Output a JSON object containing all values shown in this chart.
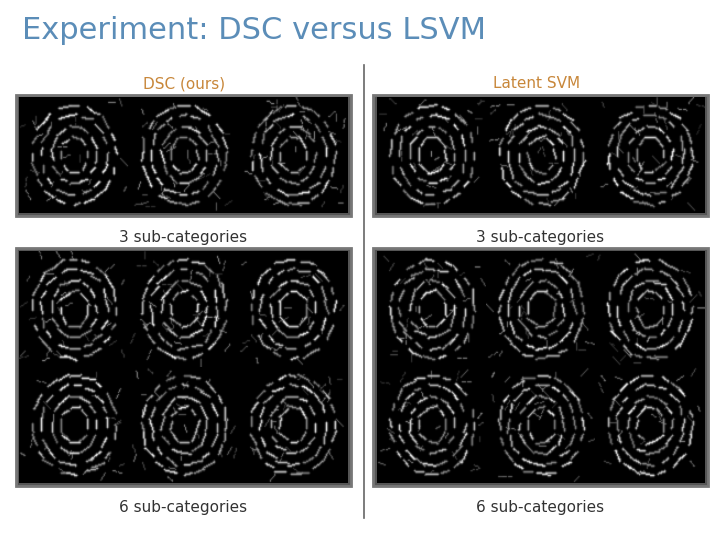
{
  "title": "Experiment: DSC versus LSVM",
  "title_color": "#5b8db8",
  "title_fontsize": 22,
  "left_label": "DSC (ours)",
  "right_label": "Latent SVM",
  "label_color": "#c8873a",
  "label_fontsize": 11,
  "sublabel_3": "3 sub-categories",
  "sublabel_6": "6 sub-categories",
  "sublabel_color": "#333333",
  "sublabel_fontsize": 11,
  "bg_color": "#ffffff",
  "border_color": "#777777",
  "border_lw": 2.0
}
